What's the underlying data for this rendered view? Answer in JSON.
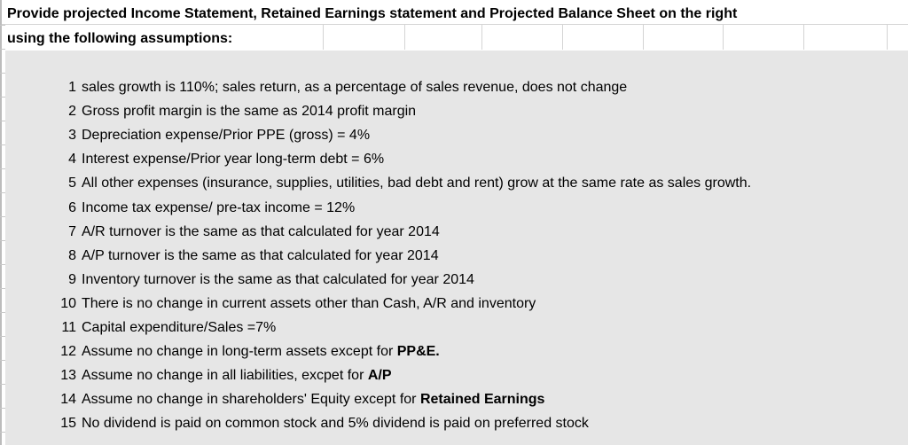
{
  "title": {
    "line1": "Provide projected Income Statement, Retained Earnings statement and Projected Balance Sheet on the right",
    "line2": "using the following assumptions:"
  },
  "assumptions": [
    {
      "num": "1",
      "text": "sales growth is 110%; sales return, as a percentage of sales revenue, does not change",
      "bold": ""
    },
    {
      "num": "2",
      "text": "Gross profit margin is the same as 2014 profit margin",
      "bold": ""
    },
    {
      "num": "3",
      "text": "Depreciation expense/Prior PPE (gross) = 4%",
      "bold": ""
    },
    {
      "num": "4",
      "text": "Interest expense/Prior year long-term debt = 6%",
      "bold": ""
    },
    {
      "num": "5",
      "text": "All other expenses (insurance, supplies, utilities, bad debt and rent) grow at the same rate as sales growth.",
      "bold": ""
    },
    {
      "num": "6",
      "text": "Income tax expense/ pre-tax income = 12%",
      "bold": ""
    },
    {
      "num": "7",
      "text": "A/R turnover is the same as that calculated for year 2014",
      "bold": ""
    },
    {
      "num": "8",
      "text": "A/P turnover is the same as that calculated for year 2014",
      "bold": ""
    },
    {
      "num": "9",
      "text": "Inventory turnover is the same as that calculated for year 2014",
      "bold": ""
    },
    {
      "num": "10",
      "text": "There is no change in current assets other than Cash, A/R and inventory",
      "bold": ""
    },
    {
      "num": "11",
      "text": "Capital expenditure/Sales =7%",
      "bold": ""
    },
    {
      "num": "12",
      "text": "Assume no change in long-term assets except for ",
      "bold": "PP&E."
    },
    {
      "num": "13",
      "text": "Assume no change in all liabilities, excpet for ",
      "bold": "A/P"
    },
    {
      "num": "14",
      "text": "Assume no change in shareholders' Equity except for ",
      "bold": "Retained Earnings"
    },
    {
      "num": "15",
      "text": "No dividend is paid on common stock and 5% dividend is paid on preferred stock",
      "bold": ""
    }
  ]
}
